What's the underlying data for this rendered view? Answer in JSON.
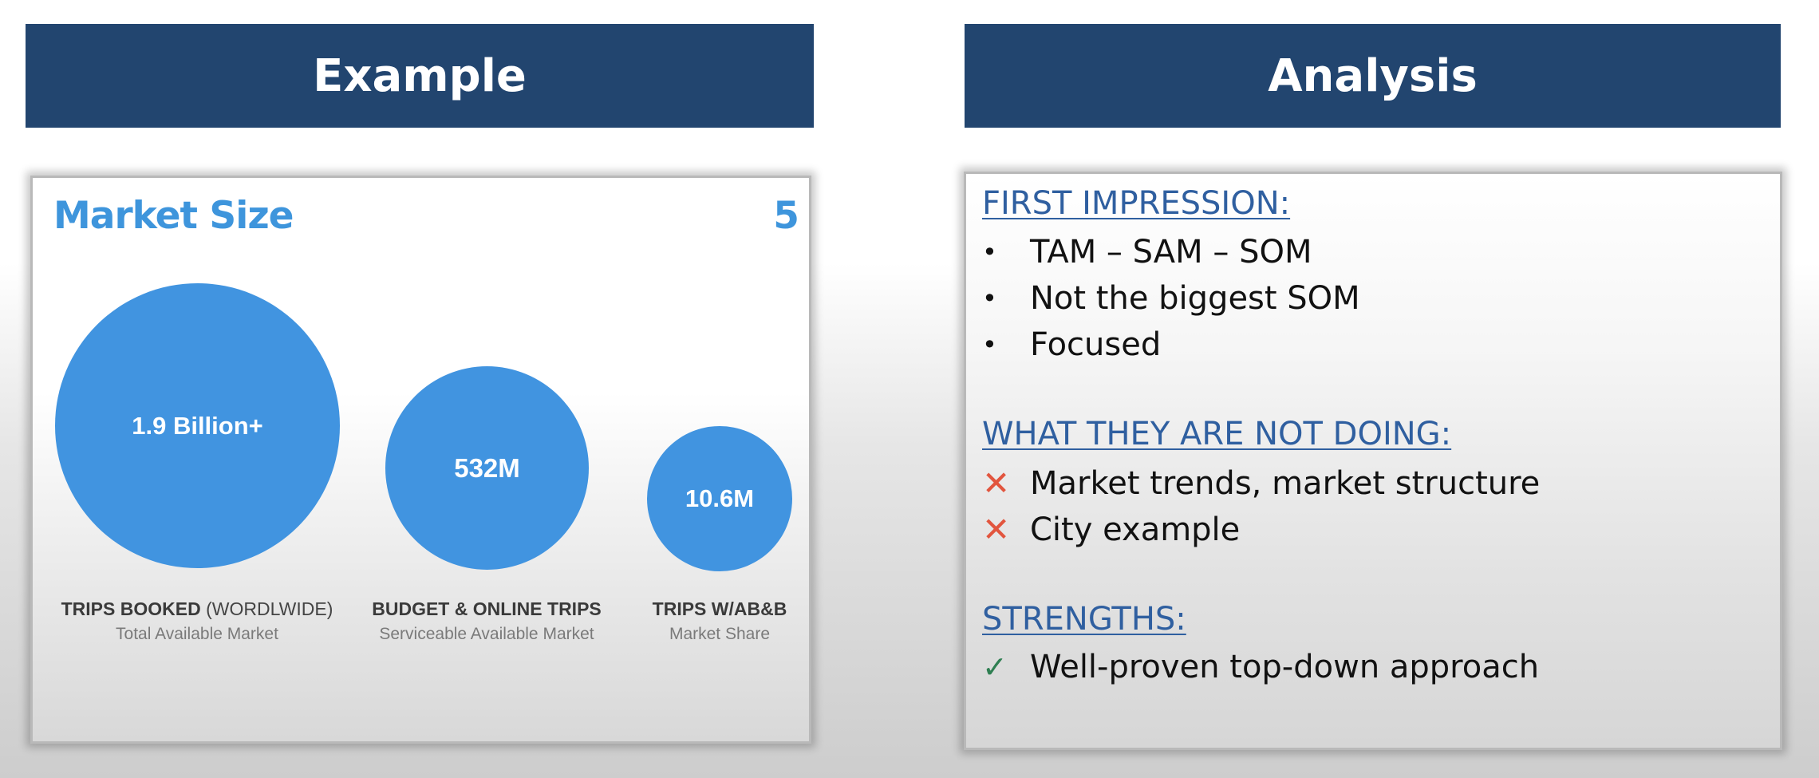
{
  "left_banner": {
    "title": "Example"
  },
  "right_banner": {
    "title": "Analysis"
  },
  "slide": {
    "title": "Market Size",
    "page_number": "5",
    "bubble_color": "#4194e0",
    "circles": [
      {
        "value": "1.9 Billion+",
        "caption_bold": "TRIPS BOOKED",
        "caption_rest": " (WORDLWIDE)",
        "subcaption": "Total Available Market"
      },
      {
        "value": "532M",
        "caption_bold": "BUDGET & ONLINE TRIPS",
        "caption_rest": "",
        "subcaption": "Serviceable Available Market"
      },
      {
        "value": "10.6M",
        "caption_bold": "TRIPS W/AB&B",
        "caption_rest": "",
        "subcaption": "Market Share"
      }
    ]
  },
  "analysis": {
    "first_impression": {
      "heading": "FIRST IMPRESSION:",
      "bullet_icon": "bullet-dot",
      "items": [
        "TAM – SAM – SOM",
        "Not the biggest SOM",
        "Focused"
      ]
    },
    "not_doing": {
      "heading": "WHAT THEY ARE NOT DOING:",
      "icon": "cross-icon",
      "icon_color": "#e2553e",
      "items": [
        "Market trends, market structure",
        "City example"
      ]
    },
    "strengths": {
      "heading": "STRENGTHS:",
      "icon": "check-icon",
      "icon_color": "#2f7f52",
      "items": [
        "Well-proven top-down approach"
      ]
    }
  },
  "colors": {
    "banner": "#22456f",
    "slide_accent": "#3e95dc",
    "heading_link": "#2f5fa0"
  }
}
